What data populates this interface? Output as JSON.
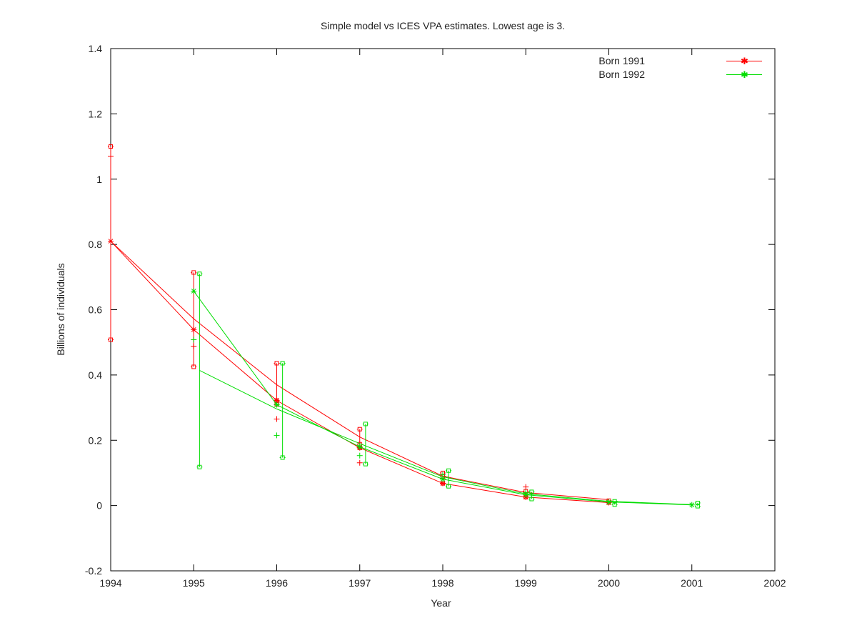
{
  "chart_data": {
    "type": "line",
    "title": "Simple model vs ICES VPA estimates. Lowest age is 3.",
    "xlabel": "Year",
    "ylabel": "Billions of individuals",
    "xlim": [
      1994,
      2002
    ],
    "ylim": [
      -0.2,
      1.4
    ],
    "xticks": [
      "1994",
      "1995",
      "1996",
      "1997",
      "1998",
      "1999",
      "2000",
      "2001",
      "2002"
    ],
    "yticks": [
      "-0.2",
      "0",
      "0.2",
      "0.4",
      "0.6",
      "0.8",
      "1",
      "1.2",
      "1.4"
    ],
    "grid": false,
    "legend_position": "top-right",
    "series": [
      {
        "name": "Born 1991",
        "color": "#ff0000",
        "stars": [
          [
            1994,
            0.81
          ],
          [
            1995,
            0.539
          ],
          [
            1996,
            0.322
          ],
          [
            1997,
            0.177
          ],
          [
            1998,
            0.068
          ],
          [
            1999,
            0.026
          ],
          [
            2000,
            0.009
          ]
        ],
        "model_line_stars": [
          [
            1994,
            0.81
          ],
          [
            1995,
            0.539
          ],
          [
            1996,
            0.322
          ],
          [
            1997,
            0.177
          ],
          [
            1998,
            0.068
          ],
          [
            1999,
            0.026
          ],
          [
            2000,
            0.009
          ]
        ],
        "model_line_upper": [
          [
            1994,
            0.81
          ],
          [
            1995,
            0.572
          ],
          [
            1996,
            0.37
          ],
          [
            1997,
            0.21
          ],
          [
            1998,
            0.09
          ],
          [
            1999,
            0.04
          ],
          [
            2000,
            0.018
          ]
        ],
        "error_bars": [
          {
            "x": 1994,
            "low": 0.508,
            "high": 1.1
          },
          {
            "x": 1995,
            "low": 0.425,
            "high": 0.714
          },
          {
            "x": 1996,
            "low": 0.322,
            "high": 0.436
          },
          {
            "x": 1997,
            "low": 0.177,
            "high": 0.234
          },
          {
            "x": 1998,
            "low": 0.068,
            "high": 0.1
          },
          {
            "x": 1999,
            "low": 0.026,
            "high": 0.044
          },
          {
            "x": 2000,
            "low": 0.009,
            "high": 0.015
          }
        ],
        "extra_squares": [
          [
            1996,
            0.31
          ],
          [
            1997,
            0.188
          ],
          [
            1998,
            0.09
          ]
        ],
        "plus_points": [
          [
            1994,
            1.07
          ],
          [
            1995,
            0.488
          ],
          [
            1996,
            0.265
          ],
          [
            1997,
            0.131
          ],
          [
            1998,
            0.082
          ],
          [
            1999,
            0.057
          ]
        ]
      },
      {
        "name": "Born 1992",
        "color": "#00dd00",
        "stars": [
          [
            1995,
            0.657
          ],
          [
            1996,
            0.309
          ],
          [
            1997,
            0.18
          ],
          [
            1998,
            0.081
          ],
          [
            1999,
            0.033
          ],
          [
            2000,
            0.011
          ],
          [
            2001,
            0.002
          ]
        ],
        "model_line_stars": [
          [
            1995,
            0.657
          ],
          [
            1996,
            0.309
          ],
          [
            1997,
            0.18
          ],
          [
            1998,
            0.081
          ],
          [
            1999,
            0.033
          ],
          [
            2000,
            0.011
          ],
          [
            2001,
            0.002
          ]
        ],
        "model_line_lower": [
          [
            1995.07,
            0.414
          ],
          [
            1996,
            0.296
          ],
          [
            1997,
            0.19
          ],
          [
            1998,
            0.088
          ],
          [
            1999,
            0.036
          ],
          [
            2000,
            0.013
          ],
          [
            2001,
            0.003
          ]
        ],
        "error_bars": [
          {
            "x": 1995.07,
            "low": 0.118,
            "high": 0.71
          },
          {
            "x": 1996.07,
            "low": 0.147,
            "high": 0.436
          },
          {
            "x": 1997.07,
            "low": 0.127,
            "high": 0.25
          },
          {
            "x": 1998.07,
            "low": 0.059,
            "high": 0.107
          },
          {
            "x": 1999.07,
            "low": 0.02,
            "high": 0.042
          },
          {
            "x": 2000.07,
            "low": 0.003,
            "high": 0.013
          },
          {
            "x": 2001.07,
            "low": -0.002,
            "high": 0.008
          }
        ],
        "plus_points": [
          [
            1995,
            0.508
          ],
          [
            1996,
            0.215
          ],
          [
            1997,
            0.153
          ],
          [
            1998,
            0.095
          ],
          [
            1999,
            0.04
          ]
        ]
      }
    ]
  }
}
